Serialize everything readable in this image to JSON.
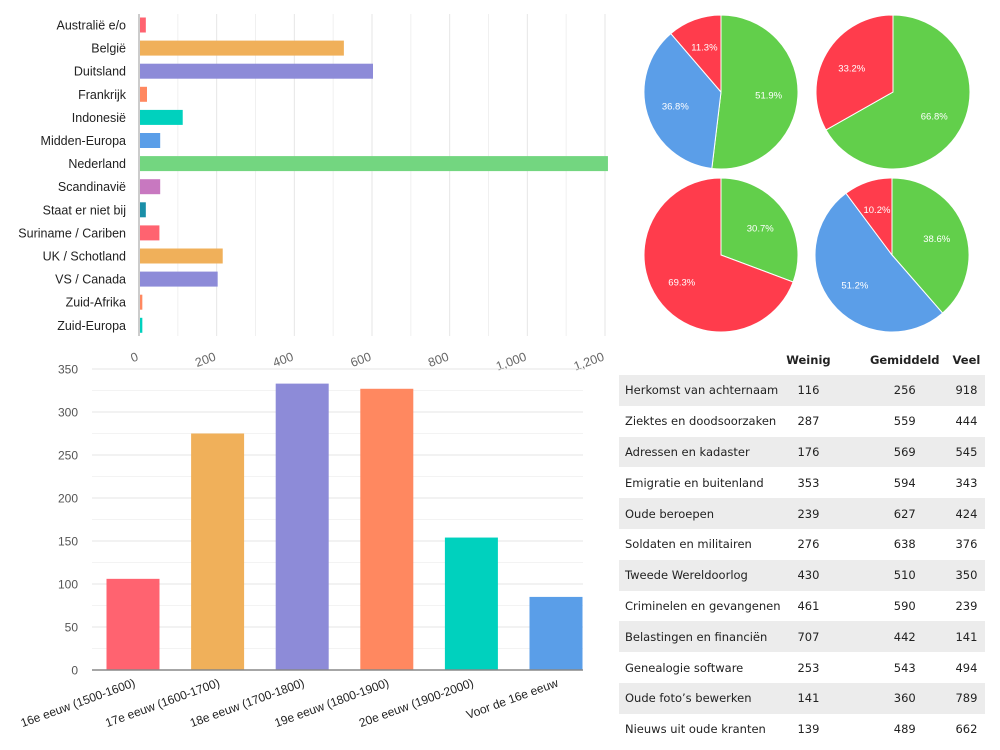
{
  "chart_data": [
    {
      "type": "bar",
      "orientation": "horizontal",
      "categories": [
        "Australië e/o",
        "België",
        "Duitsland",
        "Frankrijk",
        "Indonesië",
        "Midden-Europa",
        "Nederland",
        "Scandinavië",
        "Staat er niet bij",
        "Suriname / Cariben",
        "UK / Schotland",
        "VS / Canada",
        "Zuid-Afrika",
        "Zuid-Europa"
      ],
      "values": [
        15,
        525,
        600,
        18,
        110,
        52,
        1205,
        52,
        15,
        50,
        213,
        200,
        6,
        6
      ],
      "colors": [
        "#ff6370",
        "#f0b05a",
        "#8d8bd8",
        "#ff8860",
        "#00d1be",
        "#5a9ee8",
        "#73d680",
        "#c878c0",
        "#1a8fa8",
        "#ff6370",
        "#f0b05a",
        "#8d8bd8",
        "#ff8860",
        "#00d1be"
      ],
      "xticks": [
        "0",
        "200",
        "400",
        "600",
        "800",
        "1,000",
        "1,200"
      ],
      "xlim": [
        0,
        1200
      ],
      "grid": true
    },
    {
      "type": "bar",
      "categories": [
        "16e eeuw (1500-1600)",
        "17e eeuw (1600-1700)",
        "18e eeuw (1700-1800)",
        "19e eeuw (1800-1900)",
        "20e eeuw (1900-2000)",
        "Voor de 16e eeuw"
      ],
      "values": [
        106,
        275,
        333,
        327,
        154,
        85
      ],
      "colors": [
        "#ff6370",
        "#f0b05a",
        "#8d8bd8",
        "#ff8860",
        "#00d1be",
        "#5a9ee8"
      ],
      "yticks": [
        "0",
        "50",
        "100",
        "150",
        "200",
        "250",
        "300",
        "350"
      ],
      "ylim": [
        0,
        350
      ],
      "grid": true
    },
    {
      "type": "pie",
      "slices": [
        {
          "value": 51.9,
          "label": "51.9%",
          "color": "#62cf4b"
        },
        {
          "value": 36.8,
          "label": "36.8%",
          "color": "#5b9ee8"
        },
        {
          "value": 11.3,
          "label": "11.3%",
          "color": "#ff3c4c"
        }
      ]
    },
    {
      "type": "pie",
      "slices": [
        {
          "value": 66.8,
          "label": "66.8%",
          "color": "#62cf4b"
        },
        {
          "value": 33.2,
          "label": "33.2%",
          "color": "#ff3c4c"
        }
      ]
    },
    {
      "type": "pie",
      "slices": [
        {
          "value": 30.7,
          "label": "30.7%",
          "color": "#62cf4b"
        },
        {
          "value": 69.3,
          "label": "69.3%",
          "color": "#ff3c4c"
        }
      ]
    },
    {
      "type": "pie",
      "slices": [
        {
          "value": 38.6,
          "label": "38.6%",
          "color": "#62cf4b"
        },
        {
          "value": 51.2,
          "label": "51.2%",
          "color": "#5b9ee8"
        },
        {
          "value": 10.2,
          "label": "10.2%",
          "color": "#ff3c4c"
        }
      ]
    },
    {
      "type": "table",
      "columns": [
        "",
        "Weinig",
        "Gemiddeld",
        "Veel"
      ],
      "rows": [
        [
          "Herkomst van achternaam",
          "116",
          "256",
          "918"
        ],
        [
          "Ziektes en doodsoorzaken",
          "287",
          "559",
          "444"
        ],
        [
          "Adressen en kadaster",
          "176",
          "569",
          "545"
        ],
        [
          "Emigratie en buitenland",
          "353",
          "594",
          "343"
        ],
        [
          "Oude beroepen",
          "239",
          "627",
          "424"
        ],
        [
          "Soldaten en militairen",
          "276",
          "638",
          "376"
        ],
        [
          "Tweede Wereldoorlog",
          "430",
          "510",
          "350"
        ],
        [
          "Criminelen en gevangenen",
          "461",
          "590",
          "239"
        ],
        [
          "Belastingen en financiën",
          "707",
          "442",
          "141"
        ],
        [
          "Genealogie software",
          "253",
          "543",
          "494"
        ],
        [
          "Oude foto’s bewerken",
          "141",
          "360",
          "789"
        ],
        [
          "Nieuws uit oude kranten",
          "139",
          "489",
          "662"
        ]
      ]
    }
  ]
}
